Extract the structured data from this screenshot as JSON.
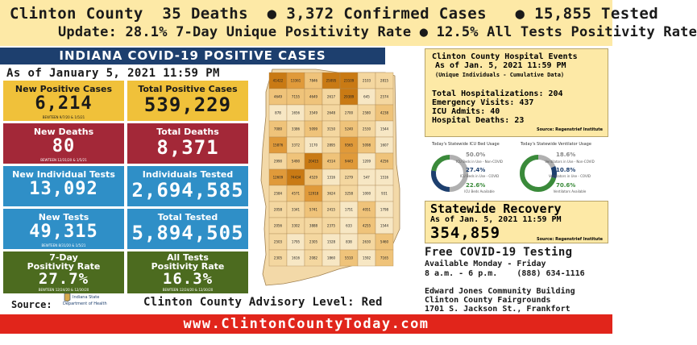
{
  "header": {
    "line1": "Clinton County  35 Deaths  ● 3,372 Confirmed Cases   ● 15,855 Tested",
    "line2": "Update: 28.1% 7-Day Unique Positivity Rate ● 12.5% All Tests Positivity Rate"
  },
  "banner": "INDIANA COVID-19 POSITIVE CASES",
  "as_of": "As of January 5, 2021 11:59 PM",
  "tiles": [
    {
      "title": "New Positive Cases",
      "value": "6,214",
      "sub": "BEWTEEN 9/7/20 & 1/5/21"
    },
    {
      "title": "Total Positive Cases",
      "value": "539,229",
      "sub": ""
    },
    {
      "title": "New Deaths",
      "value": "80",
      "sub": "BEWTEEN 12/31/20 & 1/5/21"
    },
    {
      "title": "Total Deaths",
      "value": "8,371",
      "sub": ""
    },
    {
      "title": "New Individual Tests",
      "value": "13,092",
      "sub": ""
    },
    {
      "title": "Individuals Tested",
      "value": "2,694,585",
      "sub": ""
    },
    {
      "title": "New Tests",
      "value": "49,315",
      "sub": "BEWTEEN 8/31/20 & 1/5/21"
    },
    {
      "title": "Total Tested",
      "value": "5,894,505",
      "sub": ""
    },
    {
      "title": "7-Day\nPositivity Rate",
      "value": "27.7%",
      "sub": "BEWTEEN 12/24/20 & 12/30/20"
    },
    {
      "title": "All Tests\nPositivity Rate",
      "value": "16.3%",
      "sub": "BEWTEEN 12/24/20 & 12/30/20"
    }
  ],
  "source_label": "Source:",
  "isdh_name1": "Indiana State",
  "isdh_name2": "Department of Health",
  "advisory": "Clinton County Advisory Level: Red",
  "footer_url": "www.ClintonCountyToday.com",
  "hospital": {
    "title": "Clinton County Hospital Events",
    "as_of": "As of Jan. 5, 2021 11:59 PM",
    "note": "(Unique Individuals - Cumulative Data)",
    "stats": [
      "Total Hospitalizations: 204",
      "Emergency Visits: 437",
      "ICU Admits: 40",
      "Hospital Deaths: 23"
    ],
    "source": "Source: Regenstrief Institute"
  },
  "gauges": {
    "icu_title": "Today's Statewide ICU Bed Usage",
    "vent_title": "Today's Statewide Ventilator Usage",
    "icu": [
      {
        "value": "50.0%",
        "label": "ICU Beds in Use - Non-COVID",
        "color": "#b0b0b0"
      },
      {
        "value": "27.4%",
        "label": "ICU Beds in Use - COVID",
        "color": "#1d3f6e"
      },
      {
        "value": "22.6%",
        "label": "ICU Beds Available",
        "color": "#3a8a3a"
      }
    ],
    "vent": [
      {
        "value": "18.6%",
        "label": "Ventilators in Use - Non-COVID",
        "color": "#b0b0b0"
      },
      {
        "value": "10.8%",
        "label": "Ventilators in Use - COVID",
        "color": "#1d3f6e"
      },
      {
        "value": "70.6%",
        "label": "Ventilators Available",
        "color": "#3a8a3a"
      }
    ]
  },
  "recovery": {
    "title": "Statewide Recovery",
    "as_of": "As of Jan. 5, 2021 11:59 PM",
    "value": "354,859",
    "source": "Source: Regenstrief Institute"
  },
  "testing": {
    "title": "Free COVID-19 Testing",
    "lines": [
      "Available Monday - Friday",
      "8 a.m. - 6 p.m.    (888) 634-1116",
      "",
      "Edward Jones Community Building",
      "Clinton County Fairgrounds",
      "1701 S. Jackson St., Frankfort"
    ]
  },
  "map_counts": [
    "41422",
    "13361",
    "7846",
    "25095",
    "23109",
    "2103",
    "2815",
    "4649",
    "7155",
    "4649",
    "2617",
    "29389",
    "645",
    "2574",
    "878",
    "1656",
    "3549",
    "2648",
    "2700",
    "2580",
    "4238",
    "7080",
    "3386",
    "5099",
    "3150",
    "5240",
    "2530",
    "1544",
    "15876",
    "3372",
    "1170",
    "2895",
    "9565",
    "5098",
    "1607",
    "2990",
    "5490",
    "20415",
    "4514",
    "9443",
    "1209",
    "4256",
    "12609",
    "74434",
    "4529",
    "1316",
    "2279",
    "547",
    "1516",
    "2584",
    "4571",
    "12918",
    "3624",
    "3258",
    "1000",
    "931",
    "2058",
    "3341",
    "5741",
    "2415",
    "1751",
    "4051",
    "1798",
    "2056",
    "3302",
    "3888",
    "2375",
    "633",
    "4255",
    "1544",
    "2503",
    "1795",
    "2305",
    "1528",
    "838",
    "2630",
    "5460",
    "2305",
    "1616",
    "2082",
    "1860",
    "5510",
    "1592",
    "7165"
  ]
}
